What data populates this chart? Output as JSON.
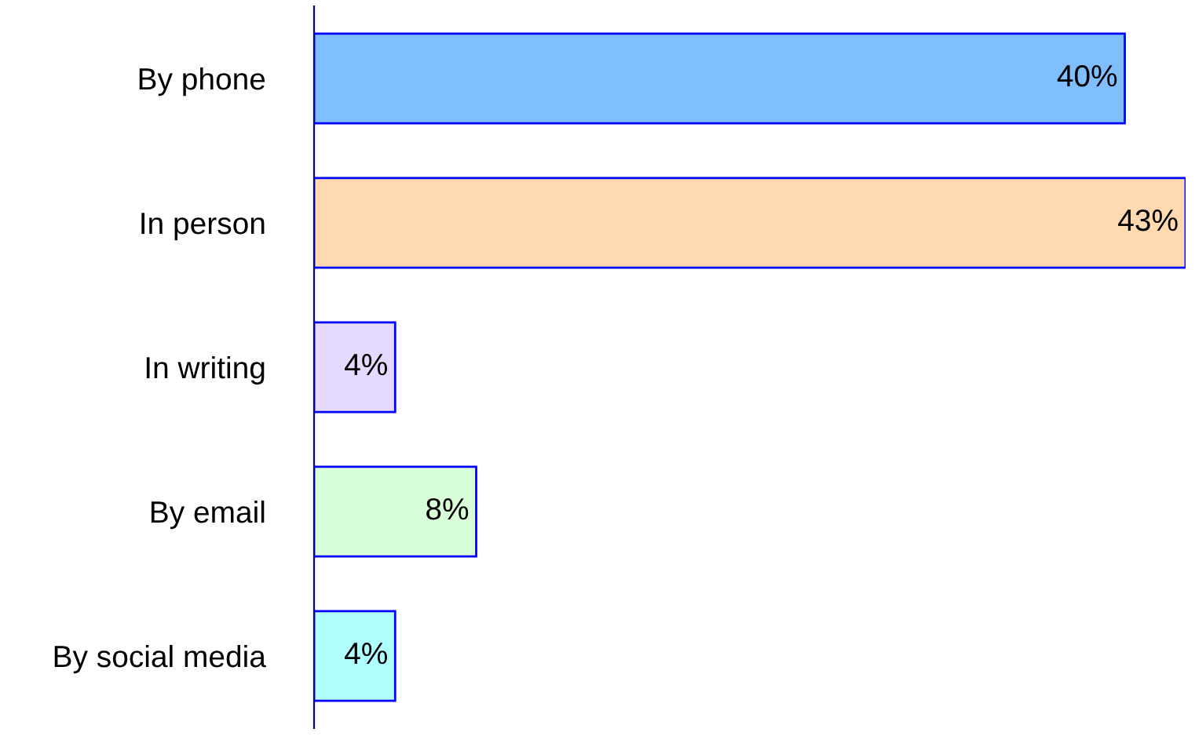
{
  "chart_data": {
    "type": "bar",
    "orientation": "horizontal",
    "categories": [
      "By phone",
      "In person",
      "In writing",
      "By email",
      "By social media"
    ],
    "values": [
      40,
      43,
      4,
      8,
      4
    ],
    "value_labels": [
      "40%",
      "43%",
      "4%",
      "8%",
      "4%"
    ],
    "colors": [
      "#80bfff",
      "#ffd9b0",
      "#e6d9ff",
      "#d9ffd9",
      "#b0ffff"
    ],
    "grid": false,
    "legend": false
  }
}
